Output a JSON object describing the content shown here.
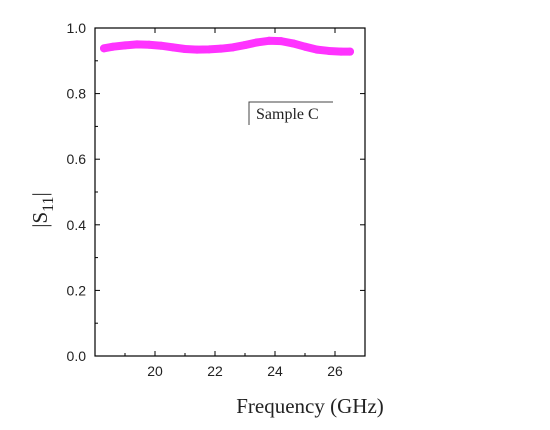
{
  "chart_data": {
    "type": "scatter",
    "xlabel": "Frequency (GHz)",
    "ylabel": {
      "main": "|S",
      "sub": "11",
      "close": "|"
    },
    "xlim": [
      18,
      27
    ],
    "ylim": [
      0.0,
      1.0
    ],
    "xticks": [
      20,
      22,
      24,
      26
    ],
    "xtick_labels": [
      "20",
      "22",
      "24",
      "26"
    ],
    "yticks": [
      0.0,
      0.2,
      0.4,
      0.6,
      0.8,
      1.0
    ],
    "ytick_labels": [
      "0.0",
      "0.2",
      "0.4",
      "0.6",
      "0.8",
      "1.0"
    ],
    "grid": false,
    "legend": {
      "label": "Sample C",
      "placement": "upper-center"
    },
    "series": [
      {
        "name": "Sample C",
        "color": "#ff33ff",
        "x": [
          18.3,
          18.6,
          19.0,
          19.4,
          19.8,
          20.2,
          20.6,
          21.0,
          21.4,
          21.8,
          22.2,
          22.6,
          23.0,
          23.4,
          23.8,
          24.2,
          24.6,
          25.0,
          25.4,
          25.8,
          26.2,
          26.5
        ],
        "y": [
          0.938,
          0.943,
          0.947,
          0.95,
          0.949,
          0.946,
          0.941,
          0.936,
          0.934,
          0.935,
          0.937,
          0.941,
          0.948,
          0.956,
          0.961,
          0.96,
          0.953,
          0.943,
          0.934,
          0.93,
          0.928,
          0.928
        ]
      }
    ]
  }
}
